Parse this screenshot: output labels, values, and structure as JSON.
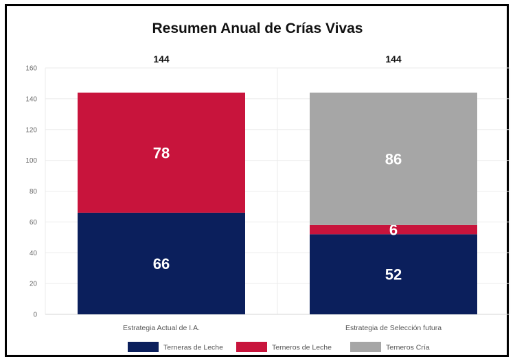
{
  "chart_data": {
    "type": "bar",
    "stacked": true,
    "title": "Resumen Anual de Crías Vivas",
    "categories": [
      "Estrategia Actual de I.A.",
      "Estrategia de Selección futura"
    ],
    "series": [
      {
        "name": "Terneras de Leche",
        "values": [
          66,
          52
        ],
        "color": "#0b1f5c"
      },
      {
        "name": "Terneros de Leche",
        "values": [
          78,
          6
        ],
        "color": "#c8143c"
      },
      {
        "name": "Terneros Cría",
        "values": [
          0,
          86
        ],
        "color": "#a6a6a6"
      }
    ],
    "totals": [
      144,
      144
    ],
    "ylim": [
      0,
      160
    ],
    "yticks": [
      0,
      20,
      40,
      60,
      80,
      100,
      120,
      140,
      160
    ],
    "grid": true,
    "legend_position": "bottom"
  }
}
